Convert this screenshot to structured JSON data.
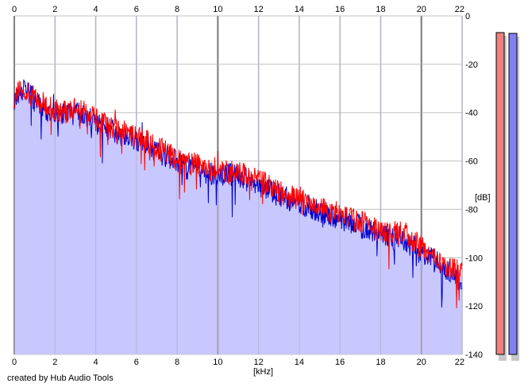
{
  "credit": "created by Hub Audio Tools",
  "chart_data": {
    "type": "line",
    "title": "",
    "xlabel": "[kHz]",
    "ylabel": "[dB]",
    "xlim": [
      0,
      22
    ],
    "ylim": [
      -140,
      0
    ],
    "x_ticks": [
      0,
      2,
      4,
      6,
      8,
      10,
      12,
      14,
      16,
      18,
      20,
      22
    ],
    "y_ticks": [
      0,
      -20,
      -40,
      -60,
      -80,
      -100,
      -120,
      -140
    ],
    "y_tick_labels": [
      "0",
      "-20",
      "-40",
      "-60",
      "-80",
      "-100",
      "-120",
      "-140"
    ],
    "grid": true,
    "legend": "none",
    "colors": {
      "background": "#ffffff",
      "fill": "#c8c8ff",
      "grid_minor": "#c0c0c0",
      "grid_major": "#808080",
      "left_channel": "#ff0000",
      "right_channel": "#0000cc",
      "meter_left": "#f08080",
      "meter_right": "#8080f0"
    },
    "series": [
      {
        "color": "#ff0000",
        "x": [
          0.0,
          0.5,
          1.0,
          1.5,
          2.0,
          2.5,
          3.0,
          3.5,
          4.0,
          4.5,
          5.0,
          5.5,
          6.0,
          6.5,
          7.0,
          7.5,
          8.0,
          8.5,
          9.0,
          9.5,
          10.0,
          10.5,
          11.0,
          11.5,
          12.0,
          12.5,
          13.0,
          13.5,
          14.0,
          14.5,
          15.0,
          15.5,
          16.0,
          16.5,
          17.0,
          17.5,
          18.0,
          18.5,
          19.0,
          19.5,
          20.0,
          20.5,
          21.0,
          21.5,
          22.0
        ],
        "y": [
          -33,
          -30,
          -34,
          -37,
          -39,
          -40,
          -38,
          -40,
          -43,
          -45,
          -47,
          -48,
          -50,
          -52,
          -55,
          -56,
          -60,
          -62,
          -61,
          -64,
          -63,
          -65,
          -64,
          -67,
          -68,
          -70,
          -73,
          -75,
          -75,
          -78,
          -79,
          -81,
          -82,
          -83,
          -85,
          -87,
          -89,
          -90,
          -90,
          -92,
          -96,
          -98,
          -103,
          -104,
          -107
        ]
      },
      {
        "color": "#0000cc",
        "x": [
          0.0,
          0.5,
          1.0,
          1.5,
          2.0,
          2.5,
          3.0,
          3.5,
          4.0,
          4.5,
          5.0,
          5.5,
          6.0,
          6.5,
          7.0,
          7.5,
          8.0,
          8.5,
          9.0,
          9.5,
          10.0,
          10.5,
          11.0,
          11.5,
          12.0,
          12.5,
          13.0,
          13.5,
          14.0,
          14.5,
          15.0,
          15.5,
          16.0,
          16.5,
          17.0,
          17.5,
          18.0,
          18.5,
          19.0,
          19.5,
          20.0,
          20.5,
          21.0,
          21.5,
          22.0
        ],
        "y": [
          -34,
          -31,
          -35,
          -38,
          -40,
          -41,
          -40,
          -42,
          -44,
          -46,
          -48,
          -50,
          -51,
          -54,
          -56,
          -58,
          -60,
          -63,
          -62,
          -65,
          -65,
          -66,
          -66,
          -68,
          -70,
          -72,
          -74,
          -76,
          -77,
          -79,
          -81,
          -82,
          -84,
          -85,
          -87,
          -88,
          -90,
          -92,
          -92,
          -95,
          -98,
          -100,
          -104,
          -106,
          -110
        ]
      }
    ],
    "meters": [
      {
        "color": "#f08080",
        "top_db": 0
      },
      {
        "color": "#8080f0",
        "top_db": 0
      }
    ]
  }
}
